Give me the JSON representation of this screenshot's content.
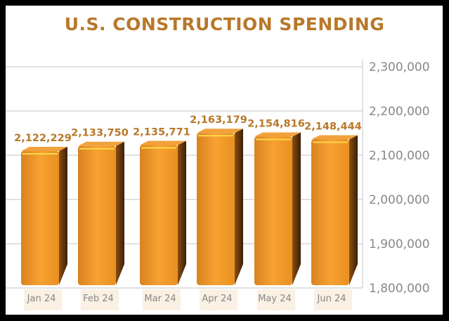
{
  "chart_data": {
    "type": "bar",
    "title": "U.S. CONSTRUCTION SPENDING",
    "categories": [
      "Jan 24",
      "Feb 24",
      "Mar 24",
      "Apr 24",
      "May 24",
      "Jun 24"
    ],
    "values": [
      2122229,
      2133750,
      2135771,
      2163179,
      2154816,
      2148444
    ],
    "data_labels": [
      "2,122,229",
      "2,133,750",
      "2,135,771",
      "2,163,179",
      "2,154,816",
      "2,148,444"
    ],
    "ylim": [
      1800000,
      2300000
    ],
    "yticks": [
      1800000,
      1900000,
      2000000,
      2100000,
      2200000,
      2300000
    ],
    "ytick_labels": [
      "1,800,000",
      "1,900,000",
      "2,000,000",
      "2,100,000",
      "2,200,000",
      "2,300,000"
    ],
    "yaxis_position": "right",
    "grid": true,
    "xlabel": "",
    "ylabel": "",
    "colors": {
      "bar": "#f39a2a",
      "bar_dark": "#9a5a12",
      "label": "#b8782a",
      "axis_text": "#888888"
    }
  }
}
